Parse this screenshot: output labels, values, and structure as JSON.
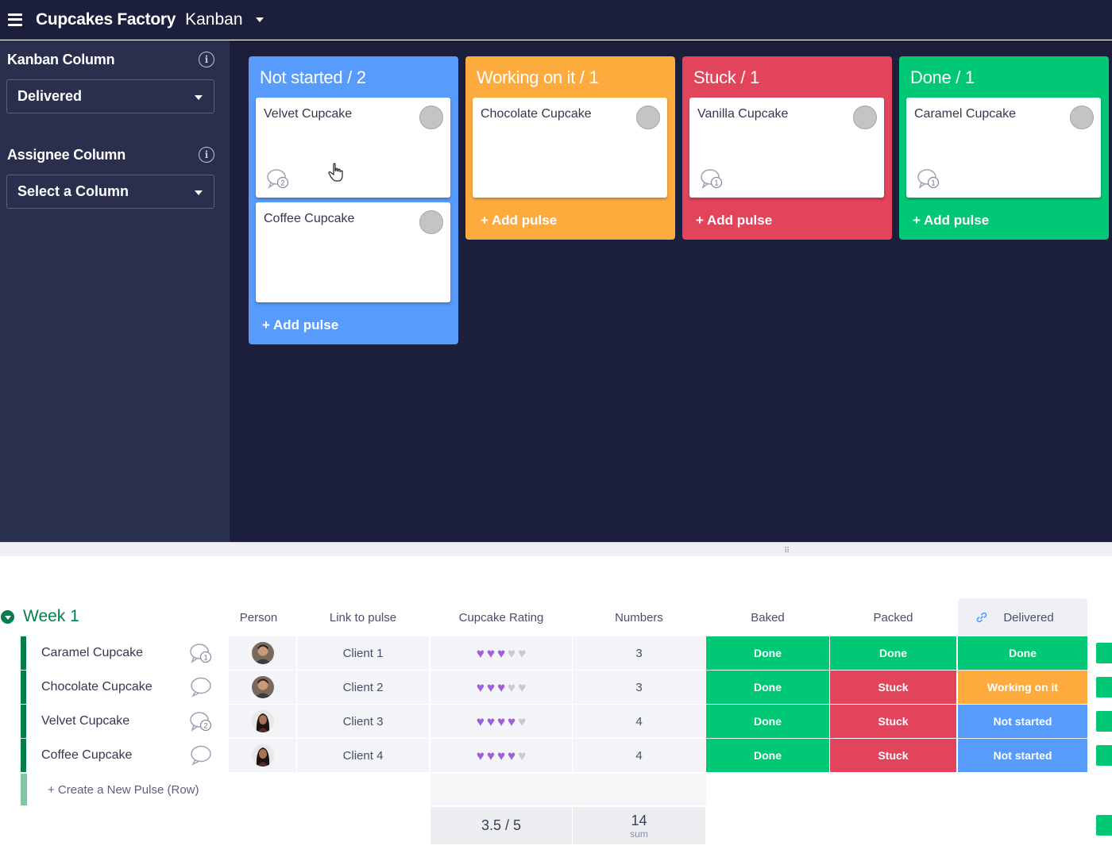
{
  "topbar": {
    "app_title": "Cupcakes Factory",
    "view_name": "Kanban"
  },
  "sidebar": {
    "kanban_label": "Kanban Column",
    "kanban_value": "Delivered",
    "assignee_label": "Assignee Column",
    "assignee_value": "Select a Column",
    "info_glyph": "i"
  },
  "kanban": {
    "add_label": "+ Add pulse",
    "columns": [
      {
        "title": "Not started / 2",
        "color": "#579bfc",
        "cards": [
          {
            "name": "Velvet Cupcake",
            "updates": "2"
          },
          {
            "name": "Coffee Cupcake",
            "updates": ""
          }
        ]
      },
      {
        "title": "Working on it / 1",
        "color": "#fdab3d",
        "cards": [
          {
            "name": "Chocolate Cupcake",
            "updates": ""
          }
        ]
      },
      {
        "title": "Stuck / 1",
        "color": "#e2445c",
        "cards": [
          {
            "name": "Vanilla Cupcake",
            "updates": "1"
          }
        ]
      },
      {
        "title": "Done / 1",
        "color": "#00c875",
        "cards": [
          {
            "name": "Caramel Cupcake",
            "updates": "1"
          }
        ]
      }
    ]
  },
  "table": {
    "group_title": "Week 1",
    "headers": {
      "person": "Person",
      "link": "Link to pulse",
      "rating": "Cupcake Rating",
      "numbers": "Numbers",
      "baked": "Baked",
      "packed": "Packed",
      "delivered": "Delivered"
    },
    "rows": [
      {
        "name": "Caramel Cupcake",
        "updates": "1",
        "link": "Client 1",
        "rating": 3,
        "numbers": "3",
        "baked": "Done",
        "packed": "Done",
        "delivered": "Done"
      },
      {
        "name": "Chocolate Cupcake",
        "updates": "",
        "link": "Client 2",
        "rating": 3,
        "numbers": "3",
        "baked": "Done",
        "packed": "Stuck",
        "delivered": "Working on it"
      },
      {
        "name": "Velvet Cupcake",
        "updates": "2",
        "link": "Client 3",
        "rating": 4,
        "numbers": "4",
        "baked": "Done",
        "packed": "Stuck",
        "delivered": "Not started"
      },
      {
        "name": "Coffee Cupcake",
        "updates": "",
        "link": "Client 4",
        "rating": 4,
        "numbers": "4",
        "baked": "Done",
        "packed": "Stuck",
        "delivered": "Not started"
      }
    ],
    "rating_max": 5,
    "new_row_label": "+ Create a New Pulse (Row)",
    "summary": {
      "rating": "3.5 / 5",
      "numbers": "14",
      "numbers_caption": "sum"
    },
    "status_colors": {
      "Done": "#00c875",
      "Stuck": "#e2445c",
      "Working on it": "#fdab3d",
      "Not started": "#579bfc"
    },
    "heart_on": "#a25ddc",
    "heart_off": "#c9c9cf"
  }
}
